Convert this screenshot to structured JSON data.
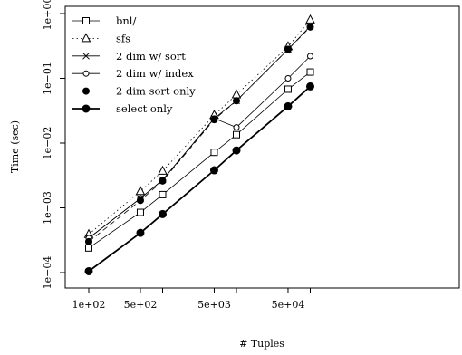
{
  "chart_data": {
    "type": "line",
    "xlabel": "# Tuples",
    "ylabel": "Time (sec)",
    "x_scale": "log",
    "y_scale": "log",
    "xlim": [
      85,
      85000
    ],
    "ylim": [
      0.0001,
      1
    ],
    "x": [
      100,
      500,
      1000,
      5000,
      10000,
      50000,
      100000
    ],
    "x_ticks": [
      100,
      500,
      5000,
      50000
    ],
    "x_tick_labels": [
      "1e+02",
      "5e+02",
      "5e+03",
      "5e+04"
    ],
    "y_ticks": [
      0.0001,
      0.001,
      0.01,
      0.1,
      1
    ],
    "y_tick_labels": [
      "1e−04",
      "1e−03",
      "1e−02",
      "1e−01",
      "1e+00"
    ],
    "legend_position": "top-left",
    "series": [
      {
        "name": "bnl/",
        "marker": "square",
        "line": "solid",
        "width": 0.8,
        "values": [
          0.00024,
          0.00085,
          0.0016,
          0.0072,
          0.0135,
          0.068,
          0.125
        ]
      },
      {
        "name": "sfs",
        "marker": "triangle",
        "line": "dotted",
        "width": 0.8,
        "values": [
          0.00039,
          0.0018,
          0.0037,
          0.027,
          0.056,
          0.31,
          0.8
        ]
      },
      {
        "name": "2 dim w/ sort",
        "marker": "cross",
        "line": "solid",
        "width": 0.8,
        "values": [
          0.00034,
          0.0014,
          0.0027,
          0.024,
          0.045,
          0.28,
          0.64
        ]
      },
      {
        "name": "2 dim w/ index",
        "marker": "circle-open",
        "line": "solid",
        "width": 0.8,
        "values": [
          0.00034,
          0.0014,
          0.0027,
          0.024,
          0.0175,
          0.1,
          0.22
        ]
      },
      {
        "name": "2 dim sort only",
        "marker": "circle-filled",
        "line": "dashed",
        "width": 0.8,
        "values": [
          0.0003,
          0.0013,
          0.0026,
          0.023,
          0.045,
          0.28,
          0.62
        ]
      },
      {
        "name": "select only",
        "marker": "circle-filled-big",
        "line": "solid",
        "width": 1.8,
        "values": [
          0.000105,
          0.00041,
          0.0008,
          0.0038,
          0.0077,
          0.037,
          0.075
        ]
      }
    ]
  }
}
